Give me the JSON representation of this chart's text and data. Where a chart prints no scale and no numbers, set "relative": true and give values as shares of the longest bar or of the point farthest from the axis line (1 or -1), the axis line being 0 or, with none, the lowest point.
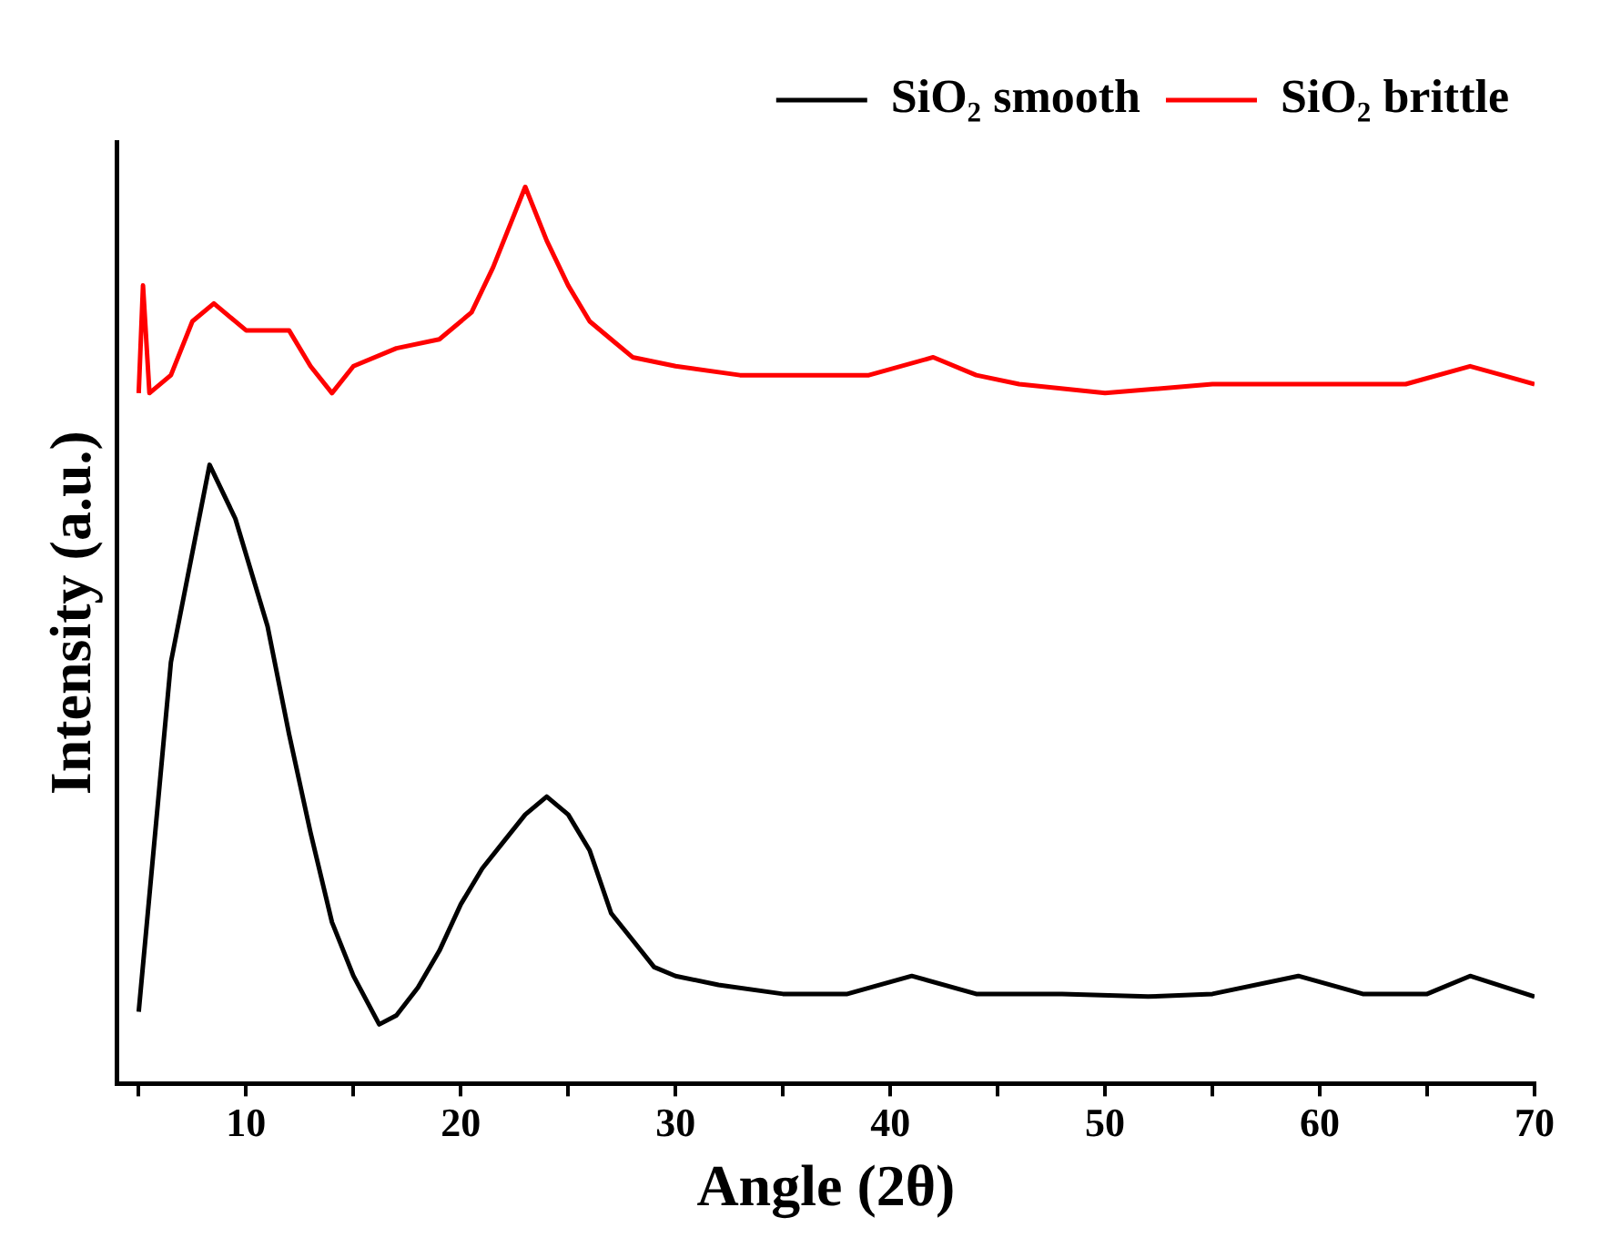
{
  "chart_data": {
    "type": "line",
    "xlabel": "Angle (2θ)",
    "ylabel": "Intensity (a.u.)",
    "relative": true,
    "xlim": [
      4,
      70
    ],
    "xticks": [
      {
        "value": 5,
        "label": null
      },
      10,
      {
        "value": 15,
        "label": null
      },
      20,
      {
        "value": 25,
        "label": null
      },
      30,
      {
        "value": 35,
        "label": null
      },
      40,
      {
        "value": 45,
        "label": null
      },
      50,
      {
        "value": 55,
        "label": null
      },
      60,
      {
        "value": 65,
        "label": null
      },
      70
    ],
    "grid": false,
    "legend": "top right",
    "marker": "none",
    "line_style": "solid",
    "series": [
      {
        "name": "SiO₂ smooth",
        "color": "#000000",
        "x": [
          5,
          6.5,
          8.3,
          9.5,
          11,
          12,
          13,
          14,
          15,
          16.2,
          17,
          18,
          19,
          20,
          21,
          22,
          23,
          24,
          25,
          26,
          27,
          28,
          29,
          30,
          32,
          35,
          38,
          41,
          44,
          48,
          52,
          55,
          59,
          62,
          65,
          67,
          70
        ],
        "values": [
          0.08,
          0.47,
          0.69,
          0.63,
          0.51,
          0.39,
          0.28,
          0.18,
          0.12,
          0.066,
          0.076,
          0.107,
          0.148,
          0.2,
          0.24,
          0.27,
          0.3,
          0.32,
          0.3,
          0.26,
          0.19,
          0.16,
          0.13,
          0.12,
          0.11,
          0.1,
          0.1,
          0.12,
          0.1,
          0.1,
          0.097,
          0.1,
          0.12,
          0.1,
          0.1,
          0.12,
          0.097
        ]
      },
      {
        "name": "SiO₂ brittle",
        "color": "#ff0000",
        "x": [
          5,
          5.2,
          5.5,
          6.5,
          7.5,
          8.5,
          10,
          11,
          12,
          13,
          14,
          15,
          17,
          19,
          20.5,
          21.5,
          22.5,
          23,
          24,
          25,
          26,
          27,
          28,
          30,
          33,
          36,
          39,
          42,
          44,
          46,
          50,
          55,
          60,
          64,
          67,
          68.5,
          70
        ],
        "values": [
          0.77,
          0.89,
          0.77,
          0.79,
          0.85,
          0.87,
          0.84,
          0.84,
          0.84,
          0.8,
          0.77,
          0.8,
          0.82,
          0.83,
          0.86,
          0.91,
          0.97,
          1.0,
          0.94,
          0.89,
          0.85,
          0.83,
          0.81,
          0.8,
          0.79,
          0.79,
          0.79,
          0.81,
          0.79,
          0.78,
          0.77,
          0.78,
          0.78,
          0.78,
          0.8,
          0.79,
          0.78
        ]
      }
    ]
  }
}
